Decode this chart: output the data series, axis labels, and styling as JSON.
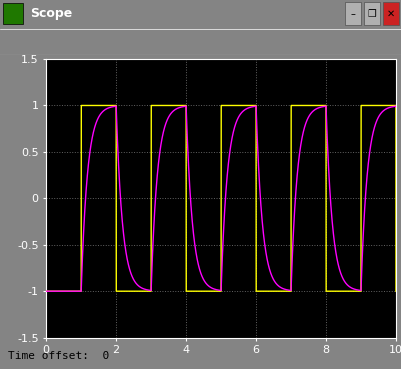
{
  "title": "Scope",
  "xlim": [
    0,
    10
  ],
  "ylim": [
    -1.5,
    1.5
  ],
  "xticks": [
    0,
    2,
    4,
    6,
    8,
    10
  ],
  "yticks": [
    -1.5,
    -1.0,
    -0.5,
    0.0,
    0.5,
    1.0,
    1.5
  ],
  "ytick_labels": [
    "-1.5",
    "-1",
    "-0.5",
    "0",
    "0.5",
    "1",
    "1.5"
  ],
  "bg_color": "#000000",
  "outer_bg": "#848484",
  "toolbar_bg": "#d4d0c8",
  "titlebar_bg": "#0a5fd4",
  "grid_color": "#646464",
  "yellow_color": "#ffff00",
  "magenta_color": "#ff00ff",
  "time_offset_label": "Time offset:  0",
  "period": 2.0,
  "amplitude": 1.0,
  "phase_shift": 1.0,
  "rc_tau": 0.18
}
